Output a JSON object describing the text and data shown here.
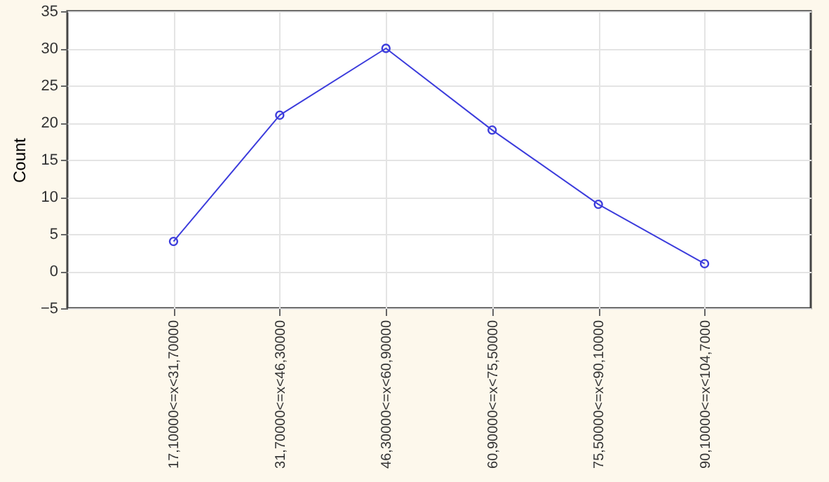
{
  "chart_data": {
    "type": "line",
    "ylabel": "Count",
    "categories": [
      "17,10000<=x<31,70000",
      "31,70000<=x<46,30000",
      "46,30000<=x<60,90000",
      "60,90000<=x<75,50000",
      "75,50000<=x<90,10000",
      "90,10000<=x<104,7000"
    ],
    "series": [
      {
        "color": "#3c3cdc",
        "values": [
          4,
          21,
          30,
          19,
          9,
          1
        ]
      }
    ],
    "ylim": [
      -5,
      35
    ],
    "yticks": [
      -5,
      0,
      5,
      10,
      15,
      20,
      25,
      30,
      35
    ],
    "grid": true,
    "marker": "circle",
    "line_style": "solid"
  }
}
